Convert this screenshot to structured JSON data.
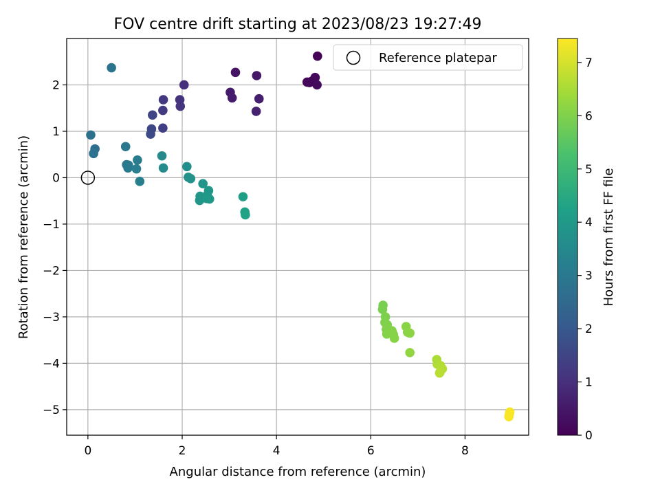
{
  "chart_data": {
    "type": "scatter",
    "title": "FOV centre drift starting at 2023/08/23 19:27:49",
    "xlabel": "Angular distance from reference (arcmin)",
    "ylabel": "Rotation from reference (arcmin)",
    "xlim": [
      -0.45,
      9.35
    ],
    "ylim": [
      -5.55,
      3.0
    ],
    "xticks": [
      0,
      2,
      4,
      6,
      8
    ],
    "yticks": [
      -5,
      -4,
      -3,
      -2,
      -1,
      0,
      1,
      2
    ],
    "grid": true,
    "legend": {
      "placement": "top-right",
      "entries": [
        "Reference platepar"
      ]
    },
    "reference_point": {
      "x": 0,
      "y": 0
    },
    "colorbar": {
      "label": "Hours from first FF file",
      "colormap": "viridis",
      "range": [
        0,
        7.45
      ],
      "ticks": [
        0,
        1,
        2,
        3,
        4,
        5,
        6,
        7
      ]
    },
    "points": [
      {
        "x": 4.87,
        "y": 2.62,
        "c": 0.05
      },
      {
        "x": 4.7,
        "y": 2.05,
        "c": 0.1
      },
      {
        "x": 4.65,
        "y": 2.06,
        "c": 0.12
      },
      {
        "x": 4.75,
        "y": 2.08,
        "c": 0.15
      },
      {
        "x": 4.82,
        "y": 2.16,
        "c": 0.18
      },
      {
        "x": 4.86,
        "y": 2.0,
        "c": 0.2
      },
      {
        "x": 3.13,
        "y": 2.27,
        "c": 0.4
      },
      {
        "x": 3.58,
        "y": 2.2,
        "c": 0.5
      },
      {
        "x": 3.02,
        "y": 1.84,
        "c": 0.55
      },
      {
        "x": 3.06,
        "y": 1.72,
        "c": 0.6
      },
      {
        "x": 3.63,
        "y": 1.7,
        "c": 0.65
      },
      {
        "x": 3.57,
        "y": 1.43,
        "c": 0.7
      },
      {
        "x": 2.04,
        "y": 2.0,
        "c": 1.05
      },
      {
        "x": 1.95,
        "y": 1.68,
        "c": 1.1
      },
      {
        "x": 1.96,
        "y": 1.54,
        "c": 1.15
      },
      {
        "x": 1.6,
        "y": 1.68,
        "c": 1.25
      },
      {
        "x": 1.59,
        "y": 1.45,
        "c": 1.3
      },
      {
        "x": 1.59,
        "y": 1.07,
        "c": 1.4
      },
      {
        "x": 1.37,
        "y": 1.35,
        "c": 1.55
      },
      {
        "x": 1.35,
        "y": 1.05,
        "c": 1.6
      },
      {
        "x": 1.33,
        "y": 0.94,
        "c": 1.7
      },
      {
        "x": 0.5,
        "y": 2.37,
        "c": 2.85
      },
      {
        "x": 0.06,
        "y": 0.92,
        "c": 2.75
      },
      {
        "x": 0.15,
        "y": 0.62,
        "c": 2.7
      },
      {
        "x": 0.12,
        "y": 0.52,
        "c": 2.8
      },
      {
        "x": 0.8,
        "y": 0.67,
        "c": 2.95
      },
      {
        "x": 0.82,
        "y": 0.28,
        "c": 3.0
      },
      {
        "x": 0.86,
        "y": 0.27,
        "c": 3.05
      },
      {
        "x": 0.85,
        "y": 0.21,
        "c": 3.05
      },
      {
        "x": 1.05,
        "y": 0.38,
        "c": 3.1
      },
      {
        "x": 1.03,
        "y": 0.19,
        "c": 3.15
      },
      {
        "x": 1.1,
        "y": -0.08,
        "c": 3.2
      },
      {
        "x": 1.57,
        "y": 0.47,
        "c": 3.5
      },
      {
        "x": 1.6,
        "y": 0.21,
        "c": 3.55
      },
      {
        "x": 2.1,
        "y": 0.24,
        "c": 3.7
      },
      {
        "x": 2.13,
        "y": 0.01,
        "c": 3.75
      },
      {
        "x": 2.18,
        "y": -0.02,
        "c": 3.8
      },
      {
        "x": 2.44,
        "y": -0.13,
        "c": 3.85
      },
      {
        "x": 2.38,
        "y": -0.4,
        "c": 3.9
      },
      {
        "x": 2.37,
        "y": -0.49,
        "c": 3.9
      },
      {
        "x": 2.56,
        "y": -0.28,
        "c": 3.95
      },
      {
        "x": 2.53,
        "y": -0.38,
        "c": 3.95
      },
      {
        "x": 2.58,
        "y": -0.46,
        "c": 4.0
      },
      {
        "x": 2.52,
        "y": -0.45,
        "c": 4.0
      },
      {
        "x": 3.29,
        "y": -0.41,
        "c": 4.2
      },
      {
        "x": 3.33,
        "y": -0.74,
        "c": 4.25
      },
      {
        "x": 3.34,
        "y": -0.8,
        "c": 4.3
      },
      {
        "x": 6.26,
        "y": -2.75,
        "c": 5.9
      },
      {
        "x": 6.25,
        "y": -2.84,
        "c": 5.92
      },
      {
        "x": 6.31,
        "y": -3.0,
        "c": 5.95
      },
      {
        "x": 6.3,
        "y": -3.12,
        "c": 5.98
      },
      {
        "x": 6.35,
        "y": -3.17,
        "c": 6.0
      },
      {
        "x": 6.33,
        "y": -3.27,
        "c": 6.0
      },
      {
        "x": 6.38,
        "y": -3.31,
        "c": 6.02
      },
      {
        "x": 6.34,
        "y": -3.37,
        "c": 6.04
      },
      {
        "x": 6.45,
        "y": -3.3,
        "c": 6.05
      },
      {
        "x": 6.48,
        "y": -3.38,
        "c": 6.06
      },
      {
        "x": 6.5,
        "y": -3.46,
        "c": 6.08
      },
      {
        "x": 6.75,
        "y": -3.21,
        "c": 6.1
      },
      {
        "x": 6.78,
        "y": -3.33,
        "c": 6.12
      },
      {
        "x": 6.83,
        "y": -3.35,
        "c": 6.15
      },
      {
        "x": 6.83,
        "y": -3.77,
        "c": 6.2
      },
      {
        "x": 7.4,
        "y": -3.92,
        "c": 6.5
      },
      {
        "x": 7.41,
        "y": -4.02,
        "c": 6.55
      },
      {
        "x": 7.48,
        "y": -4.05,
        "c": 6.6
      },
      {
        "x": 7.52,
        "y": -4.12,
        "c": 6.62
      },
      {
        "x": 7.47,
        "y": -4.19,
        "c": 6.65
      },
      {
        "x": 7.46,
        "y": -4.21,
        "c": 6.68
      },
      {
        "x": 8.95,
        "y": -5.05,
        "c": 7.35
      },
      {
        "x": 8.94,
        "y": -5.1,
        "c": 7.38
      },
      {
        "x": 8.93,
        "y": -5.15,
        "c": 7.4
      }
    ]
  }
}
